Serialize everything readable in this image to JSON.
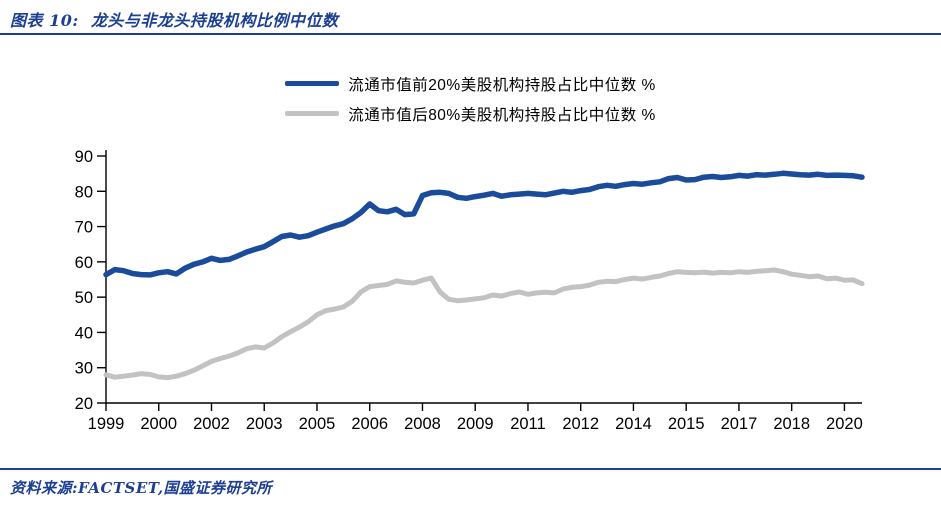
{
  "header": {
    "title": "图表 10:  龙头与非龙头持股机构比例中位数"
  },
  "footer": {
    "source": "资料来源:FACTSET,国盛证券研究所"
  },
  "colors": {
    "navy": "#1c3f94",
    "line_blue": "#1a4c9b",
    "line_gray": "#c2c2c2",
    "axis": "#000000",
    "background": "#ffffff"
  },
  "chart_data": {
    "type": "line",
    "title": "龙头与非龙头持股机构比例中位数",
    "xlabel": "",
    "ylabel": "",
    "grid": false,
    "legend_position": "top-center",
    "xlim": [
      1999,
      2020.6
    ],
    "ylim": [
      20,
      90
    ],
    "yticks": [
      20,
      30,
      40,
      50,
      60,
      70,
      80,
      90
    ],
    "xticks": {
      "positions": [
        1999,
        2000.5,
        2002,
        2003.5,
        2005,
        2006.5,
        2008,
        2009.5,
        2011,
        2012.5,
        2014,
        2015.5,
        2017,
        2018.5,
        2020
      ],
      "labels": [
        "1999",
        "2000",
        "2002",
        "2003",
        "2005",
        "2006",
        "2008",
        "2009",
        "2011",
        "2012",
        "2014",
        "2015",
        "2017",
        "2018",
        "2020"
      ]
    },
    "x_unit": "year (quarterly points)",
    "x": [
      1999.0,
      1999.25,
      1999.5,
      1999.75,
      2000.0,
      2000.25,
      2000.5,
      2000.75,
      2001.0,
      2001.25,
      2001.5,
      2001.75,
      2002.0,
      2002.25,
      2002.5,
      2002.75,
      2003.0,
      2003.25,
      2003.5,
      2003.75,
      2004.0,
      2004.25,
      2004.5,
      2004.75,
      2005.0,
      2005.25,
      2005.5,
      2005.75,
      2006.0,
      2006.25,
      2006.5,
      2006.75,
      2007.0,
      2007.25,
      2007.5,
      2007.75,
      2008.0,
      2008.25,
      2008.5,
      2008.75,
      2009.0,
      2009.25,
      2009.5,
      2009.75,
      2010.0,
      2010.25,
      2010.5,
      2010.75,
      2011.0,
      2011.25,
      2011.5,
      2011.75,
      2012.0,
      2012.25,
      2012.5,
      2012.75,
      2013.0,
      2013.25,
      2013.5,
      2013.75,
      2014.0,
      2014.25,
      2014.5,
      2014.75,
      2015.0,
      2015.25,
      2015.5,
      2015.75,
      2016.0,
      2016.25,
      2016.5,
      2016.75,
      2017.0,
      2017.25,
      2017.5,
      2017.75,
      2018.0,
      2018.25,
      2018.5,
      2018.75,
      2019.0,
      2019.25,
      2019.5,
      2019.75,
      2020.0,
      2020.25,
      2020.5
    ],
    "series": [
      {
        "name": "流通市值前20%美股机构持股占比中位数 %",
        "color": "#1a4c9b",
        "width": 5.5,
        "data_name": "series-line-top20",
        "values": [
          56.4,
          57.8,
          57.5,
          56.7,
          56.4,
          56.3,
          56.9,
          57.2,
          56.6,
          58.2,
          59.3,
          60.0,
          61.0,
          60.4,
          60.7,
          61.7,
          62.8,
          63.6,
          64.3,
          65.7,
          67.2,
          67.6,
          67.0,
          67.4,
          68.4,
          69.3,
          70.2,
          70.8,
          72.2,
          74.0,
          76.4,
          74.5,
          74.2,
          74.9,
          73.4,
          73.6,
          78.8,
          79.6,
          79.7,
          79.4,
          78.3,
          78.0,
          78.5,
          78.9,
          79.4,
          78.6,
          79.0,
          79.2,
          79.4,
          79.2,
          79.0,
          79.5,
          80.0,
          79.7,
          80.2,
          80.5,
          81.3,
          81.7,
          81.4,
          81.9,
          82.2,
          82.0,
          82.4,
          82.7,
          83.6,
          83.9,
          83.2,
          83.3,
          84.0,
          84.2,
          83.9,
          84.1,
          84.5,
          84.3,
          84.7,
          84.6,
          84.8,
          85.1,
          84.9,
          84.7,
          84.6,
          84.8,
          84.5,
          84.6,
          84.5,
          84.4,
          84.0
        ]
      },
      {
        "name": "流通市值后80%美股机构持股占比中位数 %",
        "color": "#c2c2c2",
        "width": 5,
        "data_name": "series-line-bottom80",
        "values": [
          28.0,
          27.3,
          27.6,
          27.9,
          28.3,
          28.1,
          27.4,
          27.2,
          27.6,
          28.3,
          29.3,
          30.5,
          31.8,
          32.6,
          33.3,
          34.2,
          35.4,
          35.9,
          35.6,
          37.0,
          38.8,
          40.2,
          41.5,
          43.0,
          45.0,
          46.2,
          46.6,
          47.2,
          48.8,
          51.5,
          53.0,
          53.3,
          53.6,
          54.6,
          54.2,
          54.0,
          54.8,
          55.4,
          51.5,
          49.4,
          49.0,
          49.2,
          49.5,
          49.8,
          50.6,
          50.3,
          51.0,
          51.5,
          50.8,
          51.2,
          51.4,
          51.2,
          52.3,
          52.8,
          53.0,
          53.4,
          54.2,
          54.5,
          54.4,
          55.0,
          55.4,
          55.1,
          55.6,
          56.0,
          56.7,
          57.2,
          57.0,
          56.9,
          57.1,
          56.8,
          57.0,
          56.9,
          57.2,
          57.0,
          57.3,
          57.5,
          57.7,
          57.2,
          56.5,
          56.2,
          55.8,
          56.0,
          55.2,
          55.4,
          54.8,
          54.9,
          53.8
        ]
      }
    ]
  }
}
